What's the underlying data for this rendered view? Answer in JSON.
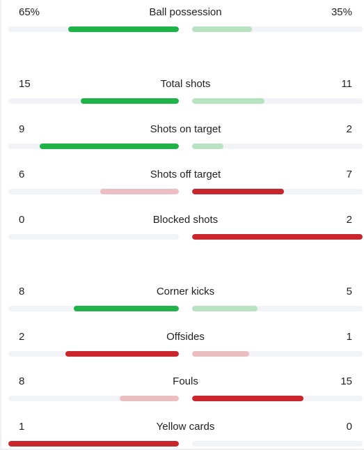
{
  "colors": {
    "winner_green": "#1fb34a",
    "loser_green": "#b8e3c3",
    "winner_red": "#c8252c",
    "loser_red": "#ecbec1",
    "track": "#f2f3f6"
  },
  "stats": [
    {
      "home": "65%",
      "label": "Ball possession",
      "away": "35%",
      "home_fill": 0.65,
      "away_fill": 0.35,
      "home_color": "#1fb34a",
      "away_color": "#b8e3c3"
    },
    {
      "home": "15",
      "label": "Total shots",
      "away": "11",
      "home_fill": 0.5769,
      "away_fill": 0.4231,
      "home_color": "#1fb34a",
      "away_color": "#b8e3c3"
    },
    {
      "home": "9",
      "label": "Shots on target",
      "away": "2",
      "home_fill": 0.8182,
      "away_fill": 0.1818,
      "home_color": "#1fb34a",
      "away_color": "#b8e3c3"
    },
    {
      "home": "6",
      "label": "Shots off target",
      "away": "7",
      "home_fill": 0.4615,
      "away_fill": 0.5385,
      "home_color": "#ecbec1",
      "away_color": "#c8252c"
    },
    {
      "home": "0",
      "label": "Blocked shots",
      "away": "2",
      "home_fill": 0,
      "away_fill": 1,
      "home_color": "#ecbec1",
      "away_color": "#c8252c"
    },
    {
      "home": "8",
      "label": "Corner kicks",
      "away": "5",
      "home_fill": 0.6154,
      "away_fill": 0.3846,
      "home_color": "#1fb34a",
      "away_color": "#b8e3c3"
    },
    {
      "home": "2",
      "label": "Offsides",
      "away": "1",
      "home_fill": 0.6667,
      "away_fill": 0.3333,
      "home_color": "#c8252c",
      "away_color": "#ecbec1"
    },
    {
      "home": "8",
      "label": "Fouls",
      "away": "15",
      "home_fill": 0.3478,
      "away_fill": 0.6522,
      "home_color": "#ecbec1",
      "away_color": "#c8252c"
    },
    {
      "home": "1",
      "label": "Yellow cards",
      "away": "0",
      "home_fill": 1,
      "away_fill": 0,
      "home_color": "#c8252c",
      "away_color": "#ecbec1"
    }
  ]
}
